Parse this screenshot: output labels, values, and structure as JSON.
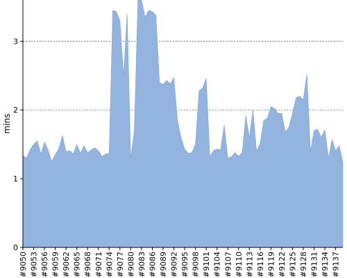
{
  "chart_data": {
    "type": "area",
    "title": "",
    "xlabel": "",
    "ylabel": "mins",
    "ylim": [
      0,
      3.6
    ],
    "yticks": [
      0,
      1,
      2,
      3
    ],
    "grid": true,
    "legend": "none",
    "colors": {
      "area": "#93b4de",
      "area_edge": "#7fa2d2",
      "axis": "#000000",
      "grid": "#555555"
    },
    "x_tick_labels": [
      "#9050",
      "#9053",
      "#9056",
      "#9059",
      "#9062",
      "#9065",
      "#9068",
      "#9071",
      "#9074",
      "#9077",
      "#9080",
      "#9083",
      "#9086",
      "#9089",
      "#9092",
      "#9095",
      "#9098",
      "#9101",
      "#9104",
      "#9107",
      "#9110",
      "#9113",
      "#9116",
      "#9119",
      "#9122",
      "#9125",
      "#9128",
      "#9131",
      "#9134",
      "#9137"
    ],
    "x_start": 9050,
    "x_end": 9139,
    "values": [
      1.34,
      1.3,
      1.42,
      1.5,
      1.55,
      1.36,
      1.53,
      1.42,
      1.25,
      1.35,
      1.44,
      1.63,
      1.39,
      1.41,
      1.36,
      1.5,
      1.37,
      1.48,
      1.38,
      1.42,
      1.45,
      1.41,
      1.32,
      1.36,
      1.37,
      3.45,
      3.43,
      3.3,
      2.5,
      3.4,
      1.3,
      1.7,
      3.6,
      3.6,
      3.35,
      3.45,
      3.43,
      3.38,
      2.4,
      2.37,
      2.43,
      2.38,
      2.47,
      1.85,
      1.6,
      1.43,
      1.37,
      1.38,
      1.5,
      2.28,
      2.32,
      2.46,
      1.32,
      1.41,
      1.43,
      1.42,
      1.78,
      1.3,
      1.32,
      1.38,
      1.33,
      1.38,
      1.92,
      1.6,
      2.0,
      1.4,
      1.51,
      1.85,
      1.88,
      2.05,
      2.02,
      1.95,
      1.95,
      1.68,
      1.75,
      1.95,
      2.18,
      2.2,
      2.15,
      2.52,
      1.4,
      1.7,
      1.72,
      1.6,
      1.71,
      1.3,
      1.57,
      1.41,
      1.48,
      1.25
    ]
  }
}
